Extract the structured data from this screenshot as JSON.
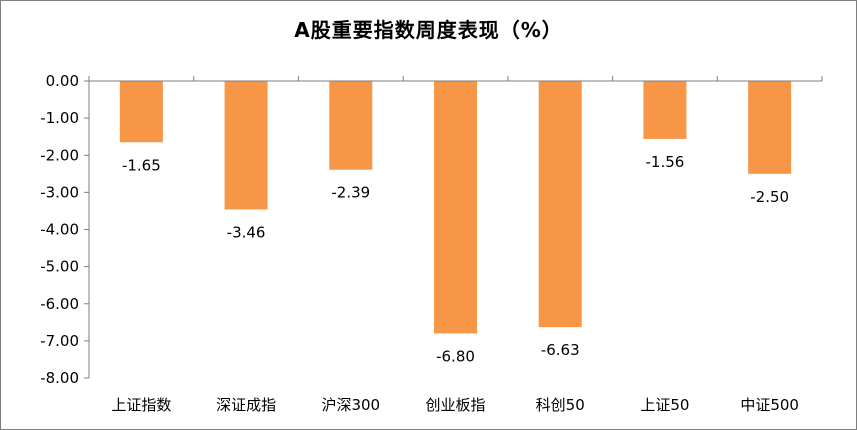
{
  "chart_data": {
    "type": "bar",
    "title": "A股重要指数周度表现（%）",
    "categories": [
      "上证指数",
      "深证成指",
      "沪深300",
      "创业板指",
      "科创50",
      "上证50",
      "中证500"
    ],
    "values": [
      -1.65,
      -3.46,
      -2.39,
      -6.8,
      -6.63,
      -1.56,
      -2.5
    ],
    "data_labels": [
      "-1.65",
      "-3.46",
      "-2.39",
      "-6.80",
      "-6.63",
      "-1.56",
      "-2.50"
    ],
    "yticks": [
      "0.00",
      "-1.00",
      "-2.00",
      "-3.00",
      "-4.00",
      "-5.00",
      "-6.00",
      "-7.00",
      "-8.00"
    ],
    "ylim": [
      -8,
      0
    ],
    "xlabel": "",
    "ylabel": "",
    "grid": false,
    "legend": "none",
    "bar_color": "#F79646"
  }
}
